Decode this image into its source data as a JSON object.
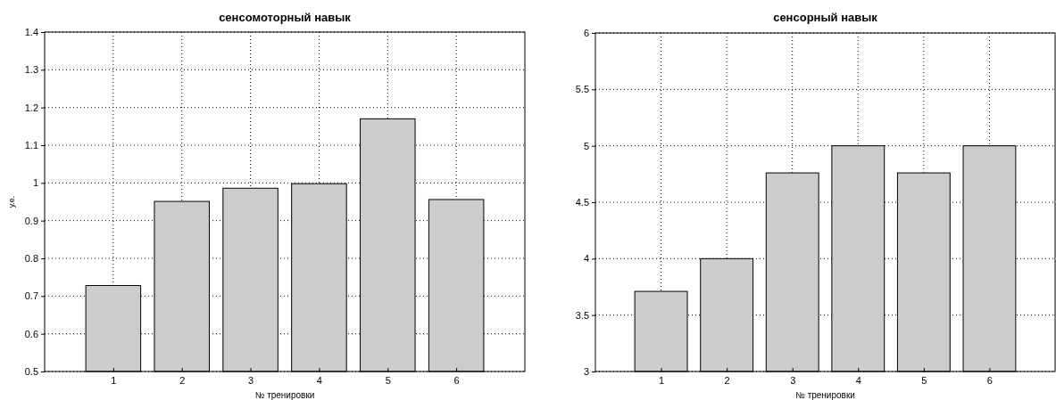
{
  "chart_data": [
    {
      "type": "bar",
      "title": "сенсомоторный навык",
      "xlabel": "№ тренировки",
      "ylabel": "у.е.",
      "categories": [
        "1",
        "2",
        "3",
        "4",
        "5",
        "6"
      ],
      "values": [
        0.728,
        0.951,
        0.986,
        0.998,
        1.17,
        0.956
      ],
      "color": "#cccccc",
      "ylim": [
        0.5,
        1.4
      ],
      "yticks": [
        0.5,
        0.6,
        0.7,
        0.8,
        0.9,
        {
          "value": 1,
          "label": "1"
        },
        1.1,
        1.2,
        1.3,
        1.4
      ],
      "grid": true
    },
    {
      "type": "bar",
      "title": "сенсорный навык",
      "xlabel": "№ тренировки",
      "categories": [
        "1",
        "2",
        "3",
        "4",
        "5",
        "6"
      ],
      "values": [
        3.71,
        4.0,
        4.76,
        5.0,
        4.76,
        5.0
      ],
      "color": "#cccccc",
      "ylim": [
        3,
        6
      ],
      "yticks": [
        3,
        3.5,
        4,
        4.5,
        5,
        5.5,
        6
      ],
      "grid": true
    }
  ]
}
